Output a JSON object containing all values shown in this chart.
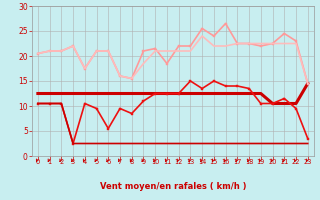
{
  "xlabel": "Vent moyen/en rafales ( km/h )",
  "xlim": [
    -0.5,
    23.5
  ],
  "ylim": [
    0,
    30
  ],
  "xticks": [
    0,
    1,
    2,
    3,
    4,
    5,
    6,
    7,
    8,
    9,
    10,
    11,
    12,
    13,
    14,
    15,
    16,
    17,
    18,
    19,
    20,
    21,
    22,
    23
  ],
  "yticks": [
    0,
    5,
    10,
    15,
    20,
    25,
    30
  ],
  "background_color": "#c8eef0",
  "grid_color": "#b0b0b0",
  "series": [
    {
      "x": [
        0,
        1,
        2,
        3,
        4,
        5,
        6,
        7,
        8,
        9,
        10,
        11,
        12,
        13,
        14,
        15,
        16,
        17,
        18,
        19,
        20,
        21,
        22,
        23
      ],
      "y": [
        12.5,
        12.5,
        12.5,
        12.5,
        12.5,
        12.5,
        12.5,
        12.5,
        12.5,
        12.5,
        12.5,
        12.5,
        12.5,
        12.5,
        12.5,
        12.5,
        12.5,
        12.5,
        12.5,
        12.5,
        10.5,
        10.5,
        10.5,
        14.5
      ],
      "color": "#cc0000",
      "lw": 2.2,
      "marker": null
    },
    {
      "x": [
        0,
        1,
        2,
        3,
        4,
        5,
        6,
        7,
        8,
        9,
        10,
        11,
        12,
        13,
        14,
        15,
        16,
        17,
        18,
        19,
        20,
        21,
        22,
        23
      ],
      "y": [
        10.5,
        10.5,
        10.5,
        2.5,
        10.5,
        9.5,
        5.5,
        9.5,
        8.5,
        11.0,
        12.5,
        12.5,
        12.5,
        15.0,
        13.5,
        15.0,
        14.0,
        14.0,
        13.5,
        10.5,
        10.5,
        11.5,
        9.5,
        3.5
      ],
      "color": "#ee1111",
      "lw": 1.2,
      "marker": "s",
      "markersize": 2.0
    },
    {
      "x": [
        0,
        1,
        2,
        3,
        4,
        5,
        6,
        7,
        8,
        9,
        10,
        11,
        12,
        13,
        14,
        15,
        16,
        17,
        18,
        19,
        20,
        21,
        22,
        23
      ],
      "y": [
        10.5,
        10.5,
        10.5,
        2.5,
        2.5,
        2.5,
        2.5,
        2.5,
        2.5,
        2.5,
        2.5,
        2.5,
        2.5,
        2.5,
        2.5,
        2.5,
        2.5,
        2.5,
        2.5,
        2.5,
        2.5,
        2.5,
        2.5,
        2.5
      ],
      "color": "#cc0000",
      "lw": 1.2,
      "marker": null
    },
    {
      "x": [
        0,
        1,
        2,
        3,
        4,
        5,
        6,
        7,
        8,
        9,
        10,
        11,
        12,
        13,
        14,
        15,
        16,
        17,
        18,
        19,
        20,
        21,
        22,
        23
      ],
      "y": [
        20.5,
        21.0,
        21.0,
        22.0,
        17.5,
        21.0,
        21.0,
        16.0,
        15.5,
        21.0,
        21.5,
        18.5,
        22.0,
        22.0,
        25.5,
        24.0,
        26.5,
        22.5,
        22.5,
        22.0,
        22.5,
        24.5,
        23.0,
        14.5
      ],
      "color": "#ff9999",
      "lw": 1.2,
      "marker": "s",
      "markersize": 2.0
    },
    {
      "x": [
        0,
        1,
        2,
        3,
        4,
        5,
        6,
        7,
        8,
        9,
        10,
        11,
        12,
        13,
        14,
        15,
        16,
        17,
        18,
        19,
        20,
        21,
        22,
        23
      ],
      "y": [
        20.5,
        21.0,
        21.0,
        22.0,
        17.5,
        21.0,
        21.0,
        16.0,
        15.5,
        18.5,
        21.0,
        21.0,
        21.0,
        21.0,
        24.0,
        22.0,
        22.0,
        22.5,
        22.5,
        22.5,
        22.5,
        22.5,
        22.5,
        14.5
      ],
      "color": "#ffbbbb",
      "lw": 1.2,
      "marker": null
    }
  ],
  "arrow_color": "#cc0000",
  "xlabel_color": "#cc0000",
  "tick_color": "#cc0000"
}
